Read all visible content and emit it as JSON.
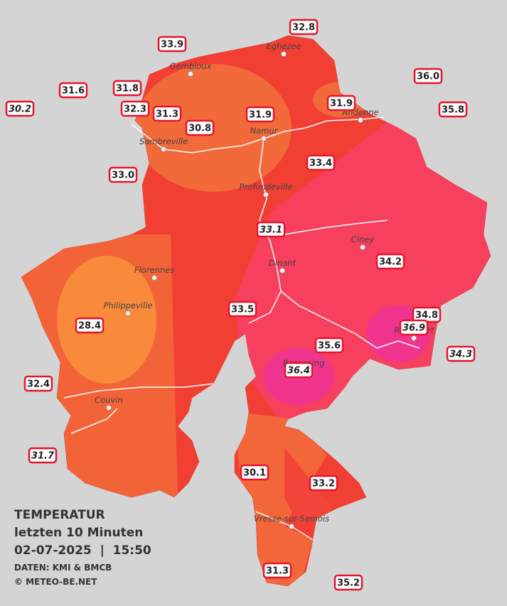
{
  "map": {
    "stations": [
      "32.8",
      "33.9",
      "36.0",
      "31.6",
      "31.8",
      "30.2",
      "32.3",
      "31.3",
      "31.9",
      "31.9",
      "35.8",
      "30.8",
      "33.4",
      "33.0",
      "33.1",
      "34.2",
      "33.5",
      "34.8",
      "28.4",
      "36.9",
      "35.6",
      "34.3",
      "36.4",
      "32.4",
      "31.7",
      "30.1",
      "33.2",
      "31.3",
      "35.2"
    ],
    "cities": [
      "Eghezee",
      "Gembloux",
      "Andenne",
      "Namur",
      "Sambreville",
      "Profondeville",
      "Ciney",
      "Dinant",
      "Florennes",
      "Philippeville",
      "Rochefort",
      "Beauraing",
      "Couvin",
      "Vresse-sur-Semois"
    ]
  },
  "legend": {
    "title": "TEMPERATUR",
    "subtitle": "letzten 10 Minuten",
    "datetime": "02-07-2025  |  15:50",
    "source": "DATEN: KMI & BMCB",
    "copyright": "© METEO-BE.NET"
  }
}
